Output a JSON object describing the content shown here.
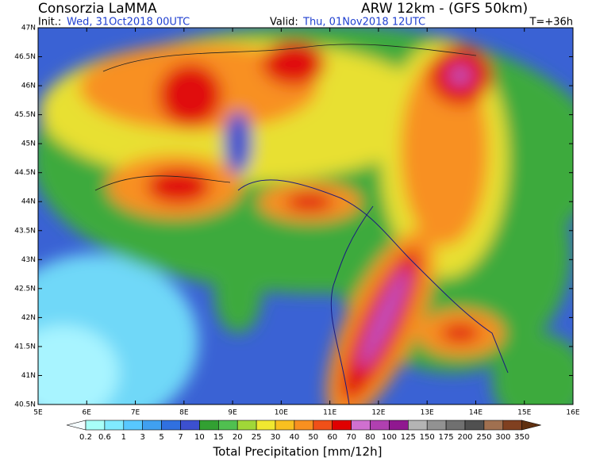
{
  "header": {
    "title": "Consorzia LaMMA",
    "model": "ARW 12km - (GFS 50km)",
    "init_label": "Init.:",
    "init": "Wed, 31Oct2018 00UTC",
    "valid_label": "Valid:",
    "valid": "Thu, 01Nov2018 12UTC",
    "step": "T=+36h"
  },
  "map": {
    "lat_labels": [
      "47N",
      "46.5N",
      "46N",
      "45.5N",
      "45N",
      "44.5N",
      "44N",
      "43.5N",
      "43N",
      "42.5N",
      "42N",
      "41.5N",
      "41N",
      "40.5N"
    ],
    "lon_labels": [
      "5E",
      "6E",
      "7E",
      "8E",
      "9E",
      "10E",
      "11E",
      "12E",
      "13E",
      "14E",
      "15E",
      "16E"
    ]
  },
  "colorbar": {
    "title": "Total Precipitation [mm/12h]",
    "labels": [
      "0.2",
      "0.6",
      "1",
      "3",
      "5",
      "7",
      "10",
      "15",
      "20",
      "25",
      "30",
      "40",
      "50",
      "60",
      "70",
      "80",
      "100",
      "125",
      "150",
      "175",
      "200",
      "250",
      "300",
      "350"
    ],
    "colors": [
      "#f4fcff",
      "#a8fff8",
      "#80eaff",
      "#58c8ff",
      "#40a0f0",
      "#3070e0",
      "#3c50d0",
      "#32a032",
      "#50c050",
      "#a0d838",
      "#f0e830",
      "#f8c020",
      "#f89020",
      "#f05018",
      "#e00000",
      "#d070d0",
      "#b040b0",
      "#901890",
      "#b4b4b4",
      "#929292",
      "#707070",
      "#505050",
      "#a07050",
      "#804020",
      "#603010"
    ]
  }
}
